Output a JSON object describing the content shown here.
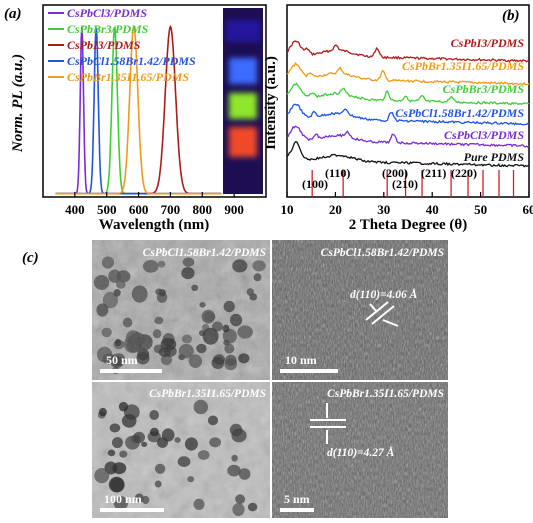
{
  "panel_labels": {
    "a": "(a)",
    "b": "(b)",
    "c": "(c)"
  },
  "chart_data": [
    {
      "type": "line",
      "panel": "(a)",
      "title": "",
      "xlabel": "Wavelength (nm)",
      "ylabel": "Norm. PL  (a.u.)",
      "xlim": [
        300,
        1000
      ],
      "ylim": [
        0,
        1.15
      ],
      "x_ticks": [
        400,
        500,
        600,
        700,
        800,
        900
      ],
      "x_tick_labels": [
        "400",
        "500",
        "600",
        "700",
        "800",
        "900"
      ],
      "legend_position": "top-left",
      "series": [
        {
          "name": "CsPbCl3/PDMS",
          "color": "#7b2cd6",
          "peak_nm": 422,
          "fwhm_nm": 12,
          "values": [
            1.0
          ]
        },
        {
          "name": "CsPbBr3/PDMS",
          "color": "#3ecf36",
          "peak_nm": 525,
          "fwhm_nm": 20,
          "values": [
            1.0
          ]
        },
        {
          "name": "CsPbI3/PDMS",
          "color": "#b01a1a",
          "peak_nm": 700,
          "fwhm_nm": 38,
          "values": [
            1.0
          ]
        },
        {
          "name": "CsPbCl1.58Br1.42/PDMS",
          "color": "#1f55e0",
          "peak_nm": 467,
          "fwhm_nm": 15,
          "values": [
            1.0
          ]
        },
        {
          "name": "CsPbBr1.35I1.65/PDMS",
          "color": "#f09a1a",
          "peak_nm": 585,
          "fwhm_nm": 30,
          "values": [
            1.0
          ]
        }
      ]
    },
    {
      "type": "line",
      "panel": "(b)",
      "title": "",
      "xlabel": "2 Theta Degree (θ)",
      "ylabel": "Intensity  (a.u.)",
      "xlim": [
        10,
        60
      ],
      "x_ticks": [
        10,
        20,
        30,
        40,
        50,
        60
      ],
      "x_tick_labels": [
        "10",
        "20",
        "30",
        "40",
        "50",
        "60"
      ],
      "reference_lines_deg": [
        15.2,
        21.6,
        30.7,
        34.5,
        37.9,
        43.9,
        47.4,
        50.5,
        53.8,
        56.8
      ],
      "peak_labels": [
        {
          "text": "(100)",
          "x_deg": 15.2
        },
        {
          "text": "(110)",
          "x_deg": 21.6
        },
        {
          "text": "(200)",
          "x_deg": 30.7
        },
        {
          "text": "(210)",
          "x_deg": 34.5
        },
        {
          "text": "(211)",
          "x_deg": 37.9
        },
        {
          "text": "(220)",
          "x_deg": 43.9
        }
      ],
      "series": [
        {
          "name": "CsPbI3/PDMS",
          "color": "#b01a1a",
          "peaks_deg": [
            14.2,
            20.1,
            28.6
          ]
        },
        {
          "name": "CsPbBr1.35I1.65/PDMS",
          "color": "#f09a1a",
          "peaks_deg": [
            14.8,
            21.0,
            29.8
          ]
        },
        {
          "name": "CsPbBr3/PDMS",
          "color": "#3ecf36",
          "peaks_deg": [
            15.2,
            21.6,
            30.7,
            34.5,
            37.9,
            43.9
          ]
        },
        {
          "name": "CsPbCl1.58Br1.42/PDMS",
          "color": "#1f55e0",
          "peaks_deg": [
            15.6,
            22.2,
            31.6
          ]
        },
        {
          "name": "CsPbCl3/PDMS",
          "color": "#7b2cd6",
          "peaks_deg": [
            15.9,
            22.5,
            32.0
          ]
        },
        {
          "name": "Pure PDMS",
          "color": "#111111",
          "peaks_deg": [
            12.0
          ]
        }
      ]
    }
  ],
  "photo": {
    "glow_colors": [
      "#2e2bff",
      "#3a6cff",
      "#8fe62a",
      "#f04a2a"
    ]
  },
  "micrographs": [
    {
      "title": "CsPbCl1.58Br1.42/PDMS",
      "scale": "50 nm"
    },
    {
      "title": "CsPbCl1.58Br1.42/PDMS",
      "scale": "10 nm",
      "annotation": "d(110)=4.06 Å"
    },
    {
      "title": "CsPbBr1.35I1.65/PDMS",
      "scale": "100 nm"
    },
    {
      "title": "CsPbBr1.35I1.65/PDMS",
      "scale": "5 nm",
      "annotation": "d(110)=4.27 Å"
    }
  ]
}
